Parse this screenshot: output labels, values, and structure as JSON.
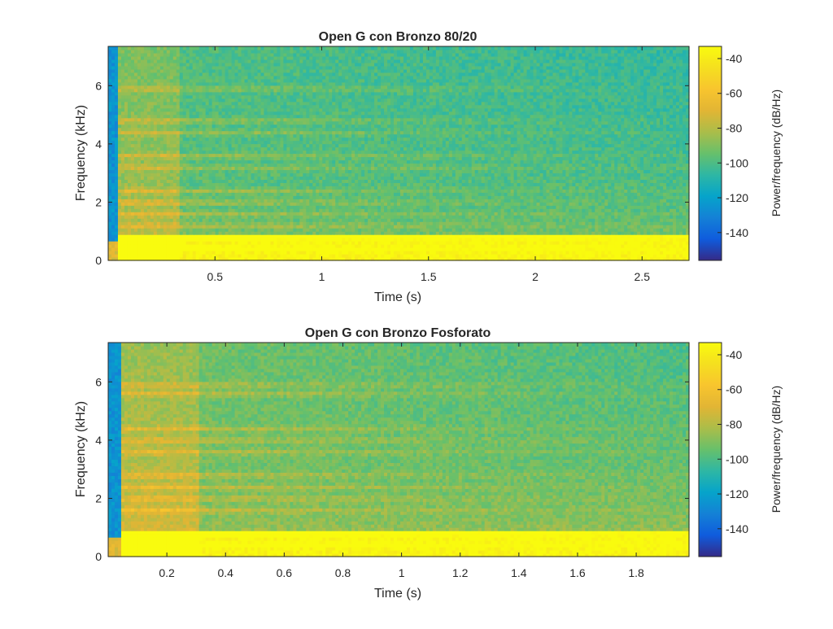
{
  "chart_data": [
    {
      "type": "heatmap",
      "title": "Open G con Bronzo 80/20",
      "xlabel": "Time (s)",
      "ylabel": "Frequency (kHz)",
      "xlim": [
        0.0,
        2.72
      ],
      "ylim": [
        0,
        7.35
      ],
      "x_ticks": [
        0.5,
        1,
        1.5,
        2,
        2.5
      ],
      "x_tick_labels": [
        "0.5",
        "1",
        "1.5",
        "2",
        "2.5"
      ],
      "y_ticks": [
        0,
        2,
        4,
        6
      ],
      "y_tick_labels": [
        "0",
        "2",
        "4",
        "6"
      ],
      "colorbar": {
        "label": "Power/frequency (dB/Hz)",
        "range": [
          -156,
          -33
        ],
        "ticks": [
          -40,
          -60,
          -80,
          -100,
          -120,
          -140
        ],
        "tick_labels": [
          "-40",
          "-60",
          "-80",
          "-100",
          "-120",
          "-140"
        ],
        "colormap": "parula"
      },
      "attack_time": 0.33,
      "harmonic_bands_khz": [
        0.4,
        0.8,
        1.2,
        1.6,
        2.0,
        2.4,
        3.2,
        3.6,
        4.4,
        4.8,
        5.9
      ],
      "low_band_power_db": -38,
      "background_power_db": -98
    },
    {
      "type": "heatmap",
      "title": "Open G con Bronzo Fosforato",
      "xlabel": "Time (s)",
      "ylabel": "Frequency (kHz)",
      "xlim": [
        0.0,
        1.98
      ],
      "ylim": [
        0,
        7.35
      ],
      "x_ticks": [
        0.2,
        0.4,
        0.6,
        0.8,
        1,
        1.2,
        1.4,
        1.6,
        1.8
      ],
      "x_tick_labels": [
        "0.2",
        "0.4",
        "0.6",
        "0.8",
        "1",
        "1.2",
        "1.4",
        "1.6",
        "1.8"
      ],
      "y_ticks": [
        0,
        2,
        4,
        6
      ],
      "y_tick_labels": [
        "0",
        "2",
        "4",
        "6"
      ],
      "colorbar": {
        "label": "Power/frequency (dB/Hz)",
        "range": [
          -156,
          -33
        ],
        "ticks": [
          -40,
          -60,
          -80,
          -100,
          -120,
          -140
        ],
        "tick_labels": [
          "-40",
          "-60",
          "-80",
          "-100",
          "-120",
          "-140"
        ],
        "colormap": "parula"
      },
      "attack_time": 0.31,
      "harmonic_bands_khz": [
        0.4,
        0.8,
        1.6,
        2.0,
        2.4,
        2.8,
        3.6,
        4.0,
        4.4,
        5.6,
        5.9
      ],
      "low_band_power_db": -38,
      "background_power_db": -92
    }
  ]
}
